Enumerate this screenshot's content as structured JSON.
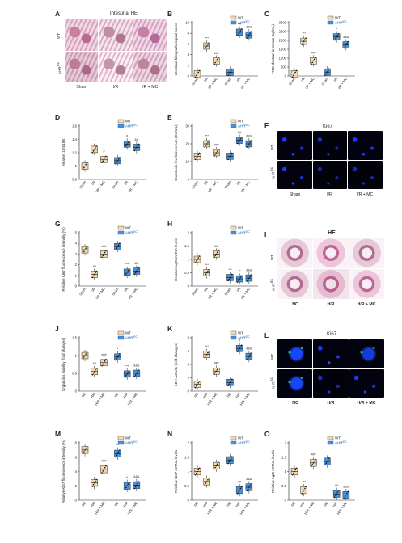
{
  "panel_labels": [
    "A",
    "B",
    "C",
    "D",
    "E",
    "F",
    "G",
    "H",
    "I",
    "J",
    "K",
    "L",
    "M",
    "N",
    "O"
  ],
  "legend": {
    "wt": "WT",
    "ahr": "AHR",
    "ahr_sup": "IEC"
  },
  "colors": {
    "wt": "#f3d9b1",
    "ahr": "#4a90d9",
    "wt_edge": "#444444",
    "ahr_edge": "#1b5fae",
    "text_ahr": "#1b5fae"
  },
  "panel_a": {
    "title": "Intestinal HE",
    "row_wt": "WT",
    "row_ahr": "AHR",
    "row_ahr_sup": "IEC",
    "cols": [
      "Sham",
      "I/R",
      "I/R + MC"
    ]
  },
  "panel_f": {
    "title": "Ki67",
    "row_wt": "WT",
    "row_ahr": "AHR",
    "row_ahr_sup": "IEC",
    "cols": [
      "Sham",
      "I/R",
      "I/R + MC"
    ]
  },
  "panel_i": {
    "title": "HE",
    "row_wt": "WT",
    "row_ahr": "AHR",
    "row_ahr_sup": "IEC",
    "cols": [
      "NC",
      "H/R",
      "H/R + MC"
    ]
  },
  "panel_l": {
    "title": "Ki67",
    "row_wt": "WT",
    "row_ahr": "AHR",
    "row_ahr_sup": "IEC",
    "cols": [
      "NC",
      "H/R",
      "H/R + MC"
    ]
  },
  "chart_data": [
    {
      "id": "B",
      "type": "box",
      "ylabel": "Intestinal histopathological score",
      "ylim": [
        0,
        10
      ],
      "yticks": [
        0,
        2,
        4,
        6,
        8,
        10
      ],
      "categories": [
        "Sham",
        "I/R",
        "I/R + MC",
        "Sham",
        "I/R",
        "I/R + MC"
      ],
      "groups": [
        "wt",
        "wt",
        "wt",
        "ahr",
        "ahr",
        "ahr"
      ],
      "values": [
        0.4,
        5.6,
        2.8,
        0.7,
        8.2,
        7.7
      ],
      "annotations": [
        "",
        "***",
        "###",
        "",
        "***",
        "&&&"
      ]
    },
    {
      "id": "C",
      "type": "box",
      "ylabel": "FITC-dextran in serum (ng/mL)",
      "ylim": [
        0,
        3000
      ],
      "yticks": [
        0,
        500,
        1000,
        1500,
        2000,
        2500,
        3000
      ],
      "categories": [
        "Sham",
        "I/R",
        "I/R + MC",
        "Sham",
        "I/R",
        "I/R + MC"
      ],
      "groups": [
        "wt",
        "wt",
        "wt",
        "ahr",
        "ahr",
        "ahr"
      ],
      "values": [
        120,
        1950,
        850,
        220,
        2200,
        1750
      ],
      "annotations": [
        "",
        "***",
        "###",
        "",
        "*",
        "&&&"
      ]
    },
    {
      "id": "D",
      "type": "box",
      "ylabel": "Relative 16S/18S",
      "ylim": [
        0.8,
        1.6
      ],
      "yticks": [
        0.8,
        1.0,
        1.2,
        1.4,
        1.6
      ],
      "categories": [
        "Sham",
        "I/R",
        "I/R + MC",
        "Sham",
        "I/R",
        "I/R + MC"
      ],
      "groups": [
        "wt",
        "wt",
        "wt",
        "ahr",
        "ahr",
        "ahr"
      ],
      "values": [
        1.0,
        1.25,
        1.1,
        1.08,
        1.33,
        1.28
      ],
      "annotations": [
        "",
        "**",
        "#",
        "",
        "#",
        "&&"
      ]
    },
    {
      "id": "E",
      "type": "box",
      "ylabel": "Endotoxin levels in serum (EU/mL)",
      "ylim": [
        0,
        30
      ],
      "yticks": [
        0,
        10,
        20,
        30
      ],
      "categories": [
        "Sham",
        "I/R",
        "I/R + MC",
        "Sham",
        "I/R",
        "I/R + MC"
      ],
      "groups": [
        "wt",
        "wt",
        "wt",
        "ahr",
        "ahr",
        "ahr"
      ],
      "values": [
        13,
        20,
        15,
        13,
        22,
        20
      ],
      "annotations": [
        "",
        "***",
        "###",
        "",
        "***",
        "&&&"
      ]
    },
    {
      "id": "G",
      "type": "box",
      "ylabel": "Relative Ki67 fluorescence intensity (%)",
      "ylim": [
        0,
        5
      ],
      "yticks": [
        0,
        1,
        2,
        3,
        4,
        5
      ],
      "categories": [
        "Sham",
        "I/R",
        "I/R + MC",
        "Sham",
        "I/R",
        "I/R + MC"
      ],
      "groups": [
        "wt",
        "wt",
        "wt",
        "ahr",
        "ahr",
        "ahr"
      ],
      "values": [
        3.4,
        1.1,
        3.0,
        3.7,
        1.3,
        1.4
      ],
      "annotations": [
        "",
        "***",
        "###",
        "",
        "***",
        "&&"
      ]
    },
    {
      "id": "H",
      "type": "box",
      "ylabel": "Relative Lgr5 mRNA levels",
      "ylim": [
        0,
        2
      ],
      "yticks": [
        0,
        0.5,
        1.0,
        1.5,
        2.0
      ],
      "categories": [
        "Sham",
        "I/R",
        "I/R + MC",
        "Sham",
        "I/R",
        "I/R + MC"
      ],
      "groups": [
        "wt",
        "wt",
        "wt",
        "ahr",
        "ahr",
        "ahr"
      ],
      "values": [
        1.0,
        0.5,
        1.2,
        0.32,
        0.27,
        0.3
      ],
      "annotations": [
        "",
        "***",
        "###",
        "***",
        "**",
        "&&&"
      ]
    },
    {
      "id": "J",
      "type": "box",
      "ylabel": "Organoids viability (fold changes)",
      "ylim": [
        0,
        1.5
      ],
      "yticks": [
        0,
        0.5,
        1.0,
        1.5
      ],
      "categories": [
        "NC",
        "H/R",
        "H/R + MC",
        "NC",
        "H/R",
        "H/R + MC"
      ],
      "groups": [
        "wt",
        "wt",
        "wt",
        "ahr",
        "ahr",
        "ahr"
      ],
      "values": [
        1.0,
        0.55,
        0.8,
        0.96,
        0.48,
        0.5
      ],
      "annotations": [
        "",
        "***",
        "###",
        "*",
        "***",
        "&&&"
      ]
    },
    {
      "id": "K",
      "type": "box",
      "ylabel": "LDH activity (fold changes)",
      "ylim": [
        0,
        8
      ],
      "yticks": [
        0,
        2,
        4,
        6,
        8
      ],
      "categories": [
        "NC",
        "H/R",
        "H/R + MC",
        "NC",
        "H/R",
        "H/R + MC"
      ],
      "groups": [
        "wt",
        "wt",
        "wt",
        "ahr",
        "ahr",
        "ahr"
      ],
      "values": [
        1.0,
        5.5,
        3.0,
        1.3,
        6.4,
        5.2
      ],
      "annotations": [
        "",
        "***",
        "###",
        "",
        "#",
        "&&&"
      ]
    },
    {
      "id": "M",
      "type": "box",
      "ylabel": "Relative Ki67 fluorescence intensity (%)",
      "ylim": [
        0,
        8
      ],
      "yticks": [
        0,
        2,
        4,
        6,
        8
      ],
      "categories": [
        "NC",
        "H/R",
        "H/R + MC",
        "NC",
        "H/R",
        "H/R + MC"
      ],
      "groups": [
        "wt",
        "wt",
        "wt",
        "ahr",
        "ahr",
        "ahr"
      ],
      "values": [
        7.0,
        2.4,
        4.3,
        6.5,
        2.0,
        2.1
      ],
      "annotations": [
        "",
        "***",
        "###",
        "**",
        "#",
        "&&&"
      ]
    },
    {
      "id": "N",
      "type": "box",
      "ylabel": "Relative Ki67 mRNA levels",
      "ylim": [
        0,
        2
      ],
      "yticks": [
        0,
        0.5,
        1.0,
        1.5,
        2.0
      ],
      "categories": [
        "NC",
        "H/R",
        "H/R + MC",
        "NC",
        "H/R",
        "H/R + MC"
      ],
      "groups": [
        "wt",
        "wt",
        "wt",
        "ahr",
        "ahr",
        "ahr"
      ],
      "values": [
        1.0,
        0.65,
        1.2,
        1.4,
        0.35,
        0.45
      ],
      "annotations": [
        "",
        "",
        "",
        "",
        "##",
        "&&&"
      ]
    },
    {
      "id": "O",
      "type": "box",
      "ylabel": "Relative Lgr5 mRNA levels",
      "ylim": [
        0,
        2
      ],
      "yticks": [
        0,
        0.5,
        1.0,
        1.5,
        2.0
      ],
      "categories": [
        "NC",
        "H/R",
        "H/R + MC",
        "NC",
        "H/R",
        "H/R + MC"
      ],
      "groups": [
        "wt",
        "wt",
        "wt",
        "ahr",
        "ahr",
        "ahr"
      ],
      "values": [
        1.0,
        0.35,
        1.3,
        1.35,
        0.22,
        0.18
      ],
      "annotations": [
        "",
        "***",
        "###",
        "",
        "***",
        "&&&"
      ]
    }
  ]
}
